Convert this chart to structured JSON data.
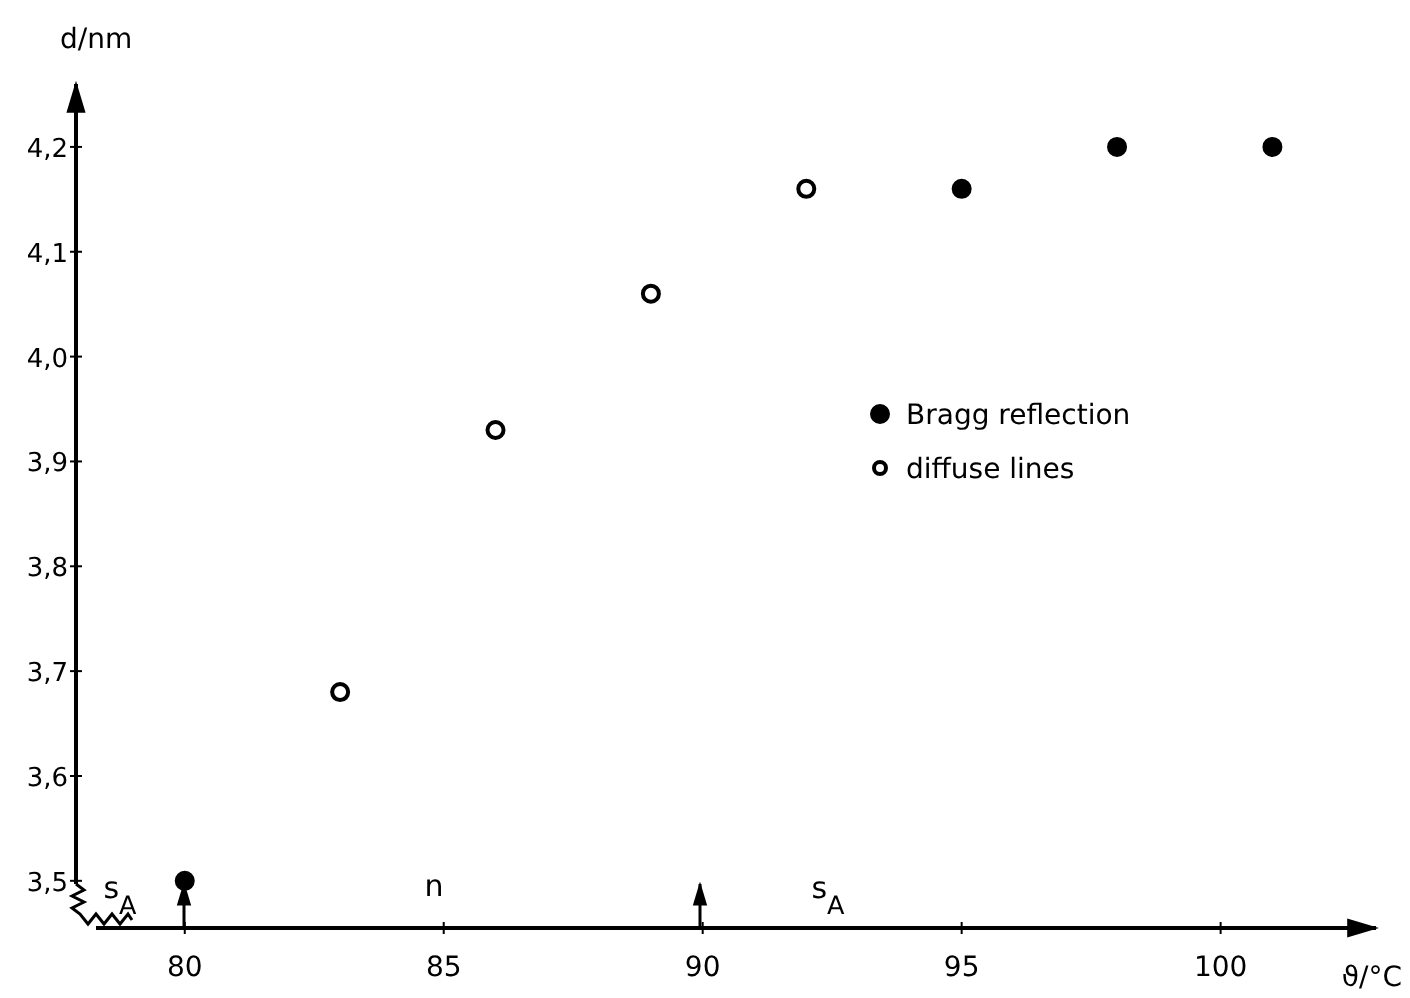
{
  "chart_data": {
    "type": "scatter",
    "xlabel": "ϑ/°C",
    "ylabel": "d/nm",
    "xlim": [
      77.9,
      103
    ],
    "ylim": [
      3.455,
      4.26
    ],
    "xticks": [
      80,
      85,
      90,
      95,
      100
    ],
    "yticks": [
      {
        "value": 3.5,
        "label": "3,5"
      },
      {
        "value": 3.6,
        "label": "3,6"
      },
      {
        "value": 3.7,
        "label": "3,7"
      },
      {
        "value": 3.8,
        "label": "3,8"
      },
      {
        "value": 3.9,
        "label": "3,9"
      },
      {
        "value": 4.0,
        "label": "4,0"
      },
      {
        "value": 4.1,
        "label": "4,1"
      },
      {
        "value": 4.2,
        "label": "4,2"
      }
    ],
    "grid": false,
    "legend": "right",
    "marker": "circle",
    "series": [
      {
        "name": "Bragg reflection",
        "color": "#000000",
        "x": [
          80,
          95,
          98,
          101
        ],
        "values": [
          3.5,
          4.16,
          4.2,
          4.2
        ]
      },
      {
        "name": "diffuse lines",
        "color": "#000000",
        "x": [
          83,
          86,
          89,
          92
        ],
        "values": [
          3.68,
          3.93,
          4.06,
          4.16
        ]
      }
    ],
    "annotations": [
      "s$_{A}$",
      "n",
      "s$_{A}$"
    ]
  }
}
